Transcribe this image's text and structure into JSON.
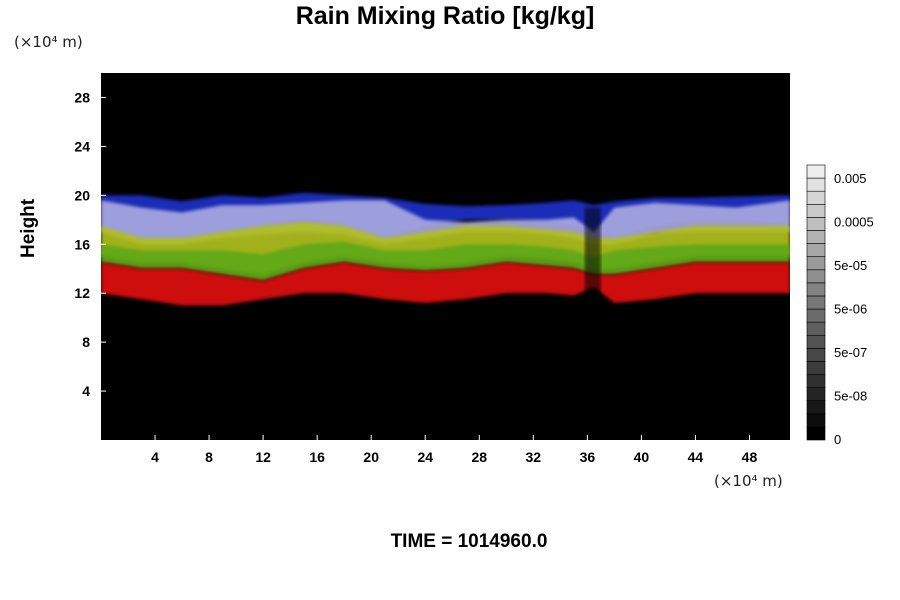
{
  "header": {
    "title": "Rain Mixing Ratio [kg/kg]"
  },
  "footer": {
    "time_label": "TIME = 1014960.0"
  },
  "colors": {
    "background": "#000000",
    "blue": "#2030c8",
    "lavender": "#a8a8e0",
    "yellow_green": "#b0c020",
    "green": "#60a818",
    "red": "#e01010"
  },
  "chart_data": {
    "type": "heatmap",
    "title": "Rain Mixing Ratio [kg/kg]",
    "xlabel": "",
    "ylabel": "Height",
    "x_unit": "(×10⁴ m)",
    "y_unit": "(×10⁴ m)",
    "xlim": [
      0,
      51
    ],
    "ylim": [
      0,
      30
    ],
    "x_ticks": [
      4,
      8,
      12,
      16,
      20,
      24,
      28,
      32,
      36,
      40,
      44,
      48
    ],
    "y_ticks": [
      4,
      8,
      12,
      16,
      20,
      24,
      28
    ],
    "colorbar": {
      "labels": [
        "0",
        "5e-08",
        "5e-07",
        "5e-06",
        "5e-05",
        "0.0005",
        "0.005"
      ],
      "levels": 21
    },
    "bands": [
      {
        "name": "blue-top",
        "color": "#2030c8",
        "x": [
          0,
          3,
          6,
          9,
          12,
          15,
          18,
          21,
          24,
          27,
          30,
          33,
          35,
          36.5,
          38,
          41,
          44,
          47,
          51
        ],
        "top": [
          20,
          20,
          19.5,
          20,
          19.8,
          20.2,
          20,
          19.8,
          19.3,
          19.1,
          19.2,
          19.4,
          19.6,
          19.2,
          19.5,
          19.8,
          19.8,
          19.9,
          20
        ],
        "bottom": [
          17.5,
          16.5,
          16.5,
          17,
          17.5,
          18,
          17.5,
          16.5,
          17.5,
          18,
          18,
          17.8,
          17.5,
          17,
          16.5,
          17.5,
          18,
          18,
          17.5
        ]
      },
      {
        "name": "lavender",
        "color": "#a8a8e0",
        "x": [
          0,
          3,
          6,
          9,
          12,
          15,
          18,
          21,
          24,
          27,
          30,
          33,
          35,
          36.5,
          38,
          41,
          44,
          47,
          51
        ],
        "top": [
          19.6,
          19,
          18.6,
          19.2,
          19.2,
          19.4,
          19.6,
          19.6,
          18,
          17.8,
          18,
          18,
          18.2,
          17,
          19,
          19.4,
          19.2,
          19,
          19.6
        ],
        "bottom": [
          17,
          16,
          16,
          16.5,
          16.8,
          17,
          16.8,
          16,
          16.5,
          17,
          17,
          16.8,
          16.5,
          16,
          16,
          16.8,
          17,
          17,
          17
        ]
      },
      {
        "name": "yellow-green",
        "color": "#b0c020",
        "x": [
          0,
          3,
          6,
          9,
          12,
          15,
          18,
          21,
          24,
          27,
          30,
          33,
          35,
          36.5,
          38,
          41,
          44,
          47,
          51
        ],
        "top": [
          17.5,
          16.5,
          16.5,
          17,
          17.5,
          17.8,
          17.5,
          16.5,
          17,
          17.5,
          17.5,
          17.2,
          17,
          16.5,
          16.5,
          17,
          17.5,
          17.5,
          17.5
        ],
        "bottom": [
          15,
          14.5,
          14.5,
          14,
          13.5,
          14.5,
          15,
          14.5,
          14.2,
          14.5,
          15,
          14.8,
          14.5,
          14,
          14,
          14.5,
          15,
          15,
          15
        ]
      },
      {
        "name": "green",
        "color": "#60a818",
        "x": [
          0,
          3,
          6,
          9,
          12,
          15,
          18,
          21,
          24,
          27,
          30,
          33,
          35,
          36.5,
          38,
          41,
          44,
          47,
          51
        ],
        "top": [
          16,
          15.5,
          15.5,
          15.5,
          15.2,
          16,
          16.2,
          15.5,
          15.5,
          16,
          16,
          15.8,
          15.5,
          15,
          15.5,
          15.8,
          16,
          16,
          16
        ],
        "bottom": [
          14.5,
          14,
          14,
          13.5,
          13,
          14,
          14.5,
          14,
          13.8,
          14,
          14.5,
          14.2,
          14,
          13.5,
          13.5,
          14,
          14.5,
          14.5,
          14.5
        ]
      },
      {
        "name": "red",
        "color": "#e01010",
        "x": [
          0,
          3,
          6,
          9,
          12,
          15,
          18,
          21,
          24,
          27,
          30,
          33,
          35,
          36.5,
          38,
          41,
          44,
          47,
          51
        ],
        "top": [
          14.5,
          14,
          14,
          13.5,
          13,
          14,
          14.5,
          14,
          13.8,
          14,
          14.5,
          14.2,
          14,
          13.5,
          13.5,
          14,
          14.5,
          14.5,
          14.5
        ],
        "bottom": [
          12,
          11.5,
          11,
          11,
          11.5,
          12,
          12,
          11.5,
          11.2,
          11.5,
          12,
          12,
          11.8,
          12.5,
          11.2,
          11.5,
          12,
          12,
          12
        ]
      }
    ]
  }
}
